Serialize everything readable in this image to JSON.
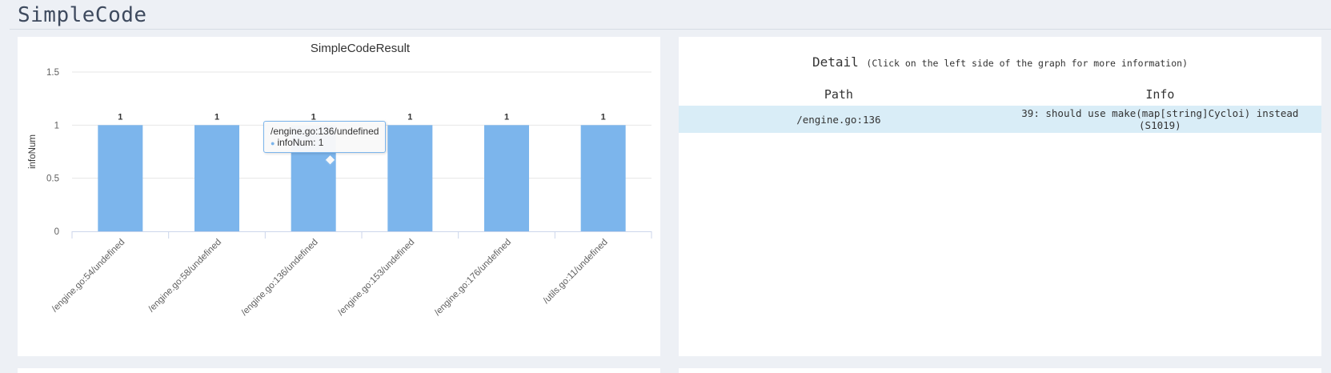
{
  "page": {
    "title": "SimpleCode"
  },
  "chart_panel": {
    "tooltip": {
      "title": "/engine.go:136/undefined",
      "series_name": "infoNum",
      "value": "1"
    }
  },
  "chart_data": {
    "type": "bar",
    "title": "SimpleCodeResult",
    "xlabel": "",
    "ylabel": "infoNum",
    "categories": [
      "/engine.go:54/undefined",
      "/engine.go:58/undefined",
      "/engine.go:136/undefined",
      "/engine.go:153/undefined",
      "/engine.go:176/undefined",
      "/utils.go:11/undefined"
    ],
    "values": [
      1,
      1,
      1,
      1,
      1,
      1
    ],
    "ylim": [
      0,
      1.5
    ],
    "yticks": [
      "0",
      "0.5",
      "1",
      "1.5"
    ],
    "grid": true,
    "data_labels": true,
    "bar_color": "#7cb5ec"
  },
  "detail_panel": {
    "title": "Detail",
    "hint": "(Click on the left side of the graph for more information)",
    "columns": [
      "Path",
      "Info"
    ],
    "rows": [
      {
        "path": "/engine.go:136",
        "info": "39: should use make(map[string]Cycloi) instead (S1019)"
      }
    ],
    "selected_row_color": "#d9edf7"
  }
}
